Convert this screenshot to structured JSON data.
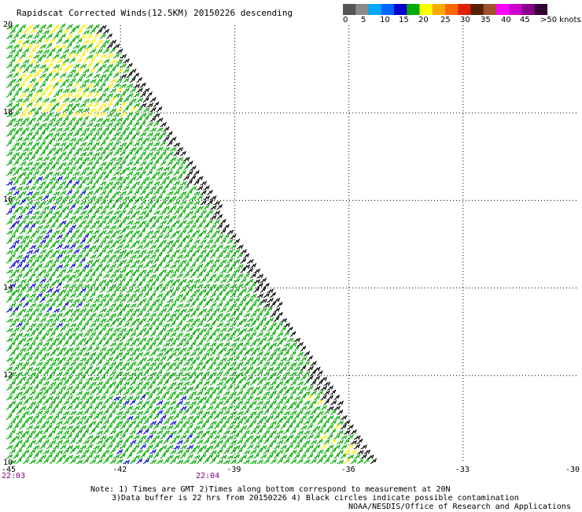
{
  "title": "Rapidscat Corrected Winds(12.5KM) 20150226 descending",
  "colorbar": {
    "colors": [
      "#555555",
      "#8a8a8a",
      "#00aaff",
      "#0066ff",
      "#0000cc",
      "#00aa00",
      "#ffff00",
      "#ffaa00",
      "#ff6600",
      "#dd2200",
      "#552200",
      "#a0522d",
      "#ff00ff",
      "#cc00cc",
      "#880088",
      "#330033"
    ],
    "labels": [
      "0",
      "5",
      "10",
      "15",
      "20",
      "25",
      "30",
      "35",
      "40",
      "45",
      ">50 knots"
    ]
  },
  "axes": {
    "lon_ticks": [
      "-45",
      "-42",
      "-39",
      "-36",
      "-33",
      "-30"
    ],
    "lat_ticks": [
      "20",
      "18",
      "16",
      "14",
      "12",
      "10"
    ],
    "lon_range": [
      -45,
      -30
    ],
    "lat_range": [
      10,
      20
    ]
  },
  "times": {
    "left": "22:03",
    "middle": "22:04"
  },
  "notes": {
    "line1": "Note: 1) Times are GMT 2)Times along bottom correspond to measurement at 20N",
    "line2": "3)Data buffer is 22 hrs from 20150226 4) Black circles indicate possible contamination",
    "credit": "NOAA/NESDIS/Office of Research and Applications"
  },
  "swath": {
    "description_edges": "Swath covers region west of diagonal edge from (-42.3,20) to (-35.3,10)",
    "dominant_speed_class": "15-20 knots (green)",
    "edge_speed_class": "0-5 knots (black)",
    "local_high_class": "20-25 knots (yellow)",
    "local_low_class": "10-15 knots (blue)"
  }
}
